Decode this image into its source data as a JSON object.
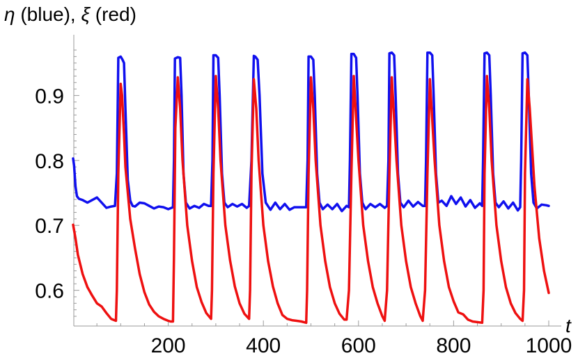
{
  "chart_data": {
    "type": "line",
    "title": "",
    "ylabel_parts": {
      "eta": "η",
      "blue": " (blue), ",
      "xi": "ξ",
      "red": " (red)"
    },
    "xlabel": "t",
    "xlim": [
      0,
      1000
    ],
    "ylim": [
      0.545,
      0.985
    ],
    "x_ticks": [
      200,
      400,
      600,
      800,
      1000
    ],
    "x_tick_labels": [
      "200",
      "400",
      "600",
      "800",
      "1000"
    ],
    "y_ticks": [
      0.6,
      0.7,
      0.8,
      0.9
    ],
    "y_tick_labels": [
      "0.6",
      "0.7",
      "0.8",
      "0.9"
    ],
    "series": [
      {
        "name": "η (blue)",
        "color": "#1010ee",
        "x": [
          0,
          2,
          5,
          8,
          12,
          20,
          30,
          40,
          50,
          60,
          70,
          80,
          88,
          92,
          95,
          100,
          104,
          107,
          110,
          115,
          120,
          125,
          130,
          140,
          150,
          160,
          170,
          180,
          190,
          200,
          210,
          212,
          214,
          220,
          225,
          228,
          232,
          237,
          245,
          255,
          265,
          275,
          285,
          290,
          293,
          295,
          300,
          305,
          308,
          313,
          318,
          325,
          335,
          345,
          355,
          365,
          370,
          375,
          380,
          383,
          388,
          392,
          398,
          405,
          415,
          425,
          435,
          445,
          455,
          465,
          475,
          485,
          490,
          493,
          495,
          500,
          505,
          508,
          513,
          518,
          525,
          535,
          545,
          555,
          565,
          575,
          580,
          582,
          585,
          590,
          595,
          598,
          603,
          608,
          615,
          625,
          635,
          645,
          655,
          660,
          663,
          665,
          670,
          675,
          678,
          683,
          688,
          695,
          705,
          715,
          725,
          735,
          740,
          742,
          745,
          750,
          755,
          758,
          763,
          768,
          775,
          785,
          795,
          805,
          815,
          825,
          835,
          845,
          855,
          860,
          862,
          865,
          870,
          875,
          878,
          883,
          888,
          895,
          905,
          915,
          925,
          935,
          940,
          942,
          945,
          950,
          955,
          958,
          963,
          968,
          975,
          985,
          995,
          1000
        ],
        "y": [
          0.803,
          0.792,
          0.76,
          0.745,
          0.741,
          0.739,
          0.735,
          0.739,
          0.743,
          0.735,
          0.727,
          0.729,
          0.73,
          0.78,
          0.958,
          0.96,
          0.955,
          0.95,
          0.88,
          0.77,
          0.738,
          0.73,
          0.729,
          0.735,
          0.734,
          0.73,
          0.726,
          0.729,
          0.728,
          0.725,
          0.728,
          0.8,
          0.957,
          0.959,
          0.958,
          0.9,
          0.78,
          0.735,
          0.726,
          0.73,
          0.727,
          0.733,
          0.73,
          0.73,
          0.8,
          0.962,
          0.962,
          0.958,
          0.9,
          0.78,
          0.735,
          0.728,
          0.733,
          0.729,
          0.733,
          0.727,
          0.73,
          0.8,
          0.961,
          0.96,
          0.955,
          0.9,
          0.78,
          0.735,
          0.724,
          0.735,
          0.725,
          0.733,
          0.724,
          0.728,
          0.728,
          0.728,
          0.728,
          0.8,
          0.96,
          0.96,
          0.955,
          0.9,
          0.78,
          0.735,
          0.725,
          0.732,
          0.725,
          0.733,
          0.722,
          0.73,
          0.728,
          0.8,
          0.964,
          0.964,
          0.958,
          0.9,
          0.78,
          0.735,
          0.725,
          0.733,
          0.728,
          0.733,
          0.727,
          0.73,
          0.8,
          0.965,
          0.966,
          0.962,
          0.9,
          0.78,
          0.735,
          0.728,
          0.738,
          0.729,
          0.736,
          0.73,
          0.73,
          0.8,
          0.966,
          0.966,
          0.962,
          0.9,
          0.78,
          0.735,
          0.738,
          0.73,
          0.745,
          0.733,
          0.743,
          0.729,
          0.739,
          0.727,
          0.734,
          0.73,
          0.8,
          0.965,
          0.966,
          0.962,
          0.9,
          0.78,
          0.735,
          0.728,
          0.737,
          0.726,
          0.735,
          0.723,
          0.728,
          0.8,
          0.965,
          0.966,
          0.962,
          0.9,
          0.78,
          0.735,
          0.726,
          0.732,
          0.731,
          0.73
        ]
      },
      {
        "name": "ξ (red)",
        "color": "#ee1010",
        "x": [
          0,
          5,
          10,
          20,
          30,
          40,
          50,
          60,
          70,
          80,
          90,
          92,
          95,
          100,
          103,
          107,
          110,
          120,
          130,
          140,
          150,
          160,
          170,
          180,
          190,
          200,
          205,
          210,
          212,
          215,
          220,
          225,
          230,
          240,
          250,
          260,
          270,
          280,
          290,
          292,
          295,
          300,
          305,
          310,
          320,
          330,
          340,
          350,
          360,
          370,
          372,
          375,
          380,
          385,
          390,
          400,
          410,
          420,
          430,
          440,
          450,
          460,
          470,
          480,
          490,
          492,
          495,
          500,
          505,
          510,
          520,
          530,
          540,
          550,
          560,
          570,
          575,
          580,
          585,
          590,
          600,
          610,
          620,
          630,
          640,
          650,
          655,
          660,
          665,
          670,
          680,
          690,
          700,
          710,
          720,
          730,
          735,
          740,
          745,
          750,
          760,
          770,
          780,
          790,
          800,
          810,
          820,
          830,
          840,
          850,
          860,
          863,
          865,
          870,
          875,
          880,
          890,
          900,
          910,
          920,
          930,
          940,
          945,
          948,
          950,
          955,
          960,
          970,
          980,
          990,
          1000
        ],
        "y": [
          0.701,
          0.68,
          0.655,
          0.625,
          0.605,
          0.592,
          0.58,
          0.575,
          0.565,
          0.556,
          0.553,
          0.6,
          0.78,
          0.918,
          0.9,
          0.84,
          0.79,
          0.71,
          0.665,
          0.625,
          0.597,
          0.578,
          0.567,
          0.56,
          0.556,
          0.553,
          0.552,
          0.552,
          0.65,
          0.85,
          0.928,
          0.88,
          0.8,
          0.7,
          0.645,
          0.605,
          0.582,
          0.565,
          0.556,
          0.6,
          0.78,
          0.93,
          0.88,
          0.8,
          0.7,
          0.646,
          0.606,
          0.58,
          0.564,
          0.556,
          0.6,
          0.78,
          0.925,
          0.88,
          0.8,
          0.7,
          0.645,
          0.606,
          0.58,
          0.562,
          0.556,
          0.554,
          0.553,
          0.552,
          0.55,
          0.6,
          0.78,
          0.928,
          0.88,
          0.8,
          0.7,
          0.645,
          0.605,
          0.58,
          0.564,
          0.555,
          0.555,
          0.6,
          0.78,
          0.93,
          0.8,
          0.7,
          0.645,
          0.605,
          0.58,
          0.56,
          0.553,
          0.6,
          0.78,
          0.928,
          0.8,
          0.7,
          0.645,
          0.605,
          0.58,
          0.56,
          0.553,
          0.6,
          0.78,
          0.925,
          0.8,
          0.7,
          0.645,
          0.605,
          0.583,
          0.566,
          0.563,
          0.555,
          0.552,
          0.551,
          0.55,
          0.6,
          0.78,
          0.93,
          0.88,
          0.8,
          0.7,
          0.645,
          0.605,
          0.58,
          0.565,
          0.556,
          0.553,
          0.6,
          0.78,
          0.925,
          0.88,
          0.76,
          0.68,
          0.63,
          0.596
        ]
      }
    ]
  }
}
